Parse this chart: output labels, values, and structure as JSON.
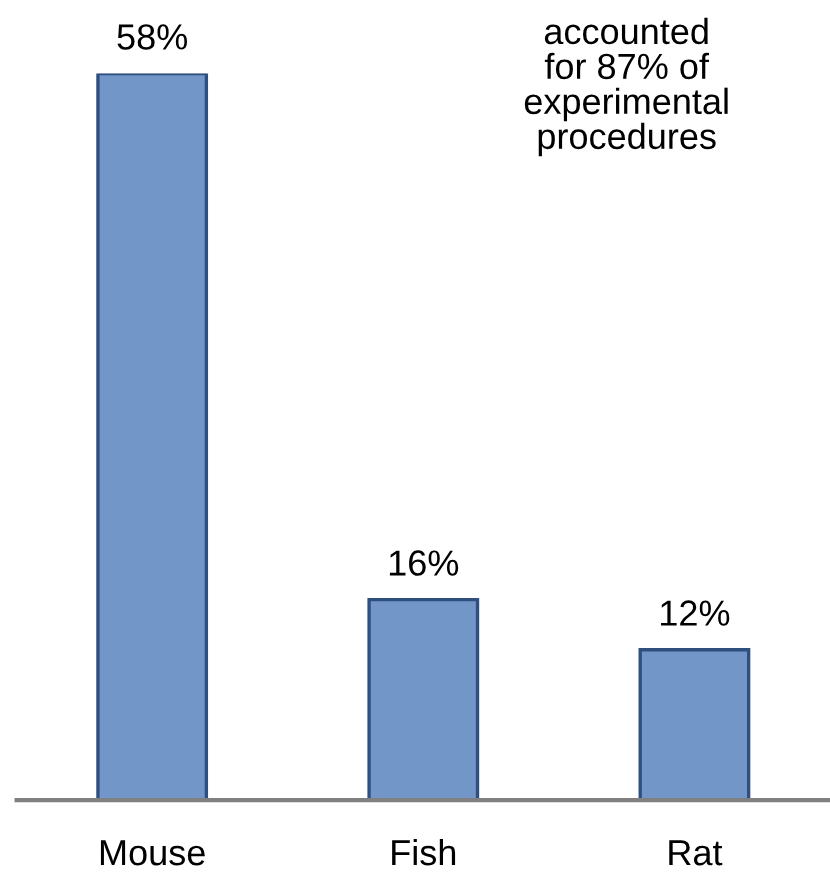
{
  "chart_data": {
    "type": "bar",
    "categories": [
      "Mouse",
      "Fish",
      "Rat"
    ],
    "values": [
      58,
      16,
      12
    ],
    "value_labels": [
      "58%",
      "16%",
      "12%"
    ],
    "color": "#7396c8",
    "annotations": [
      "accounted\nfor 87% of\nexperimental\nprocedures"
    ],
    "grid": false,
    "legend": false
  }
}
